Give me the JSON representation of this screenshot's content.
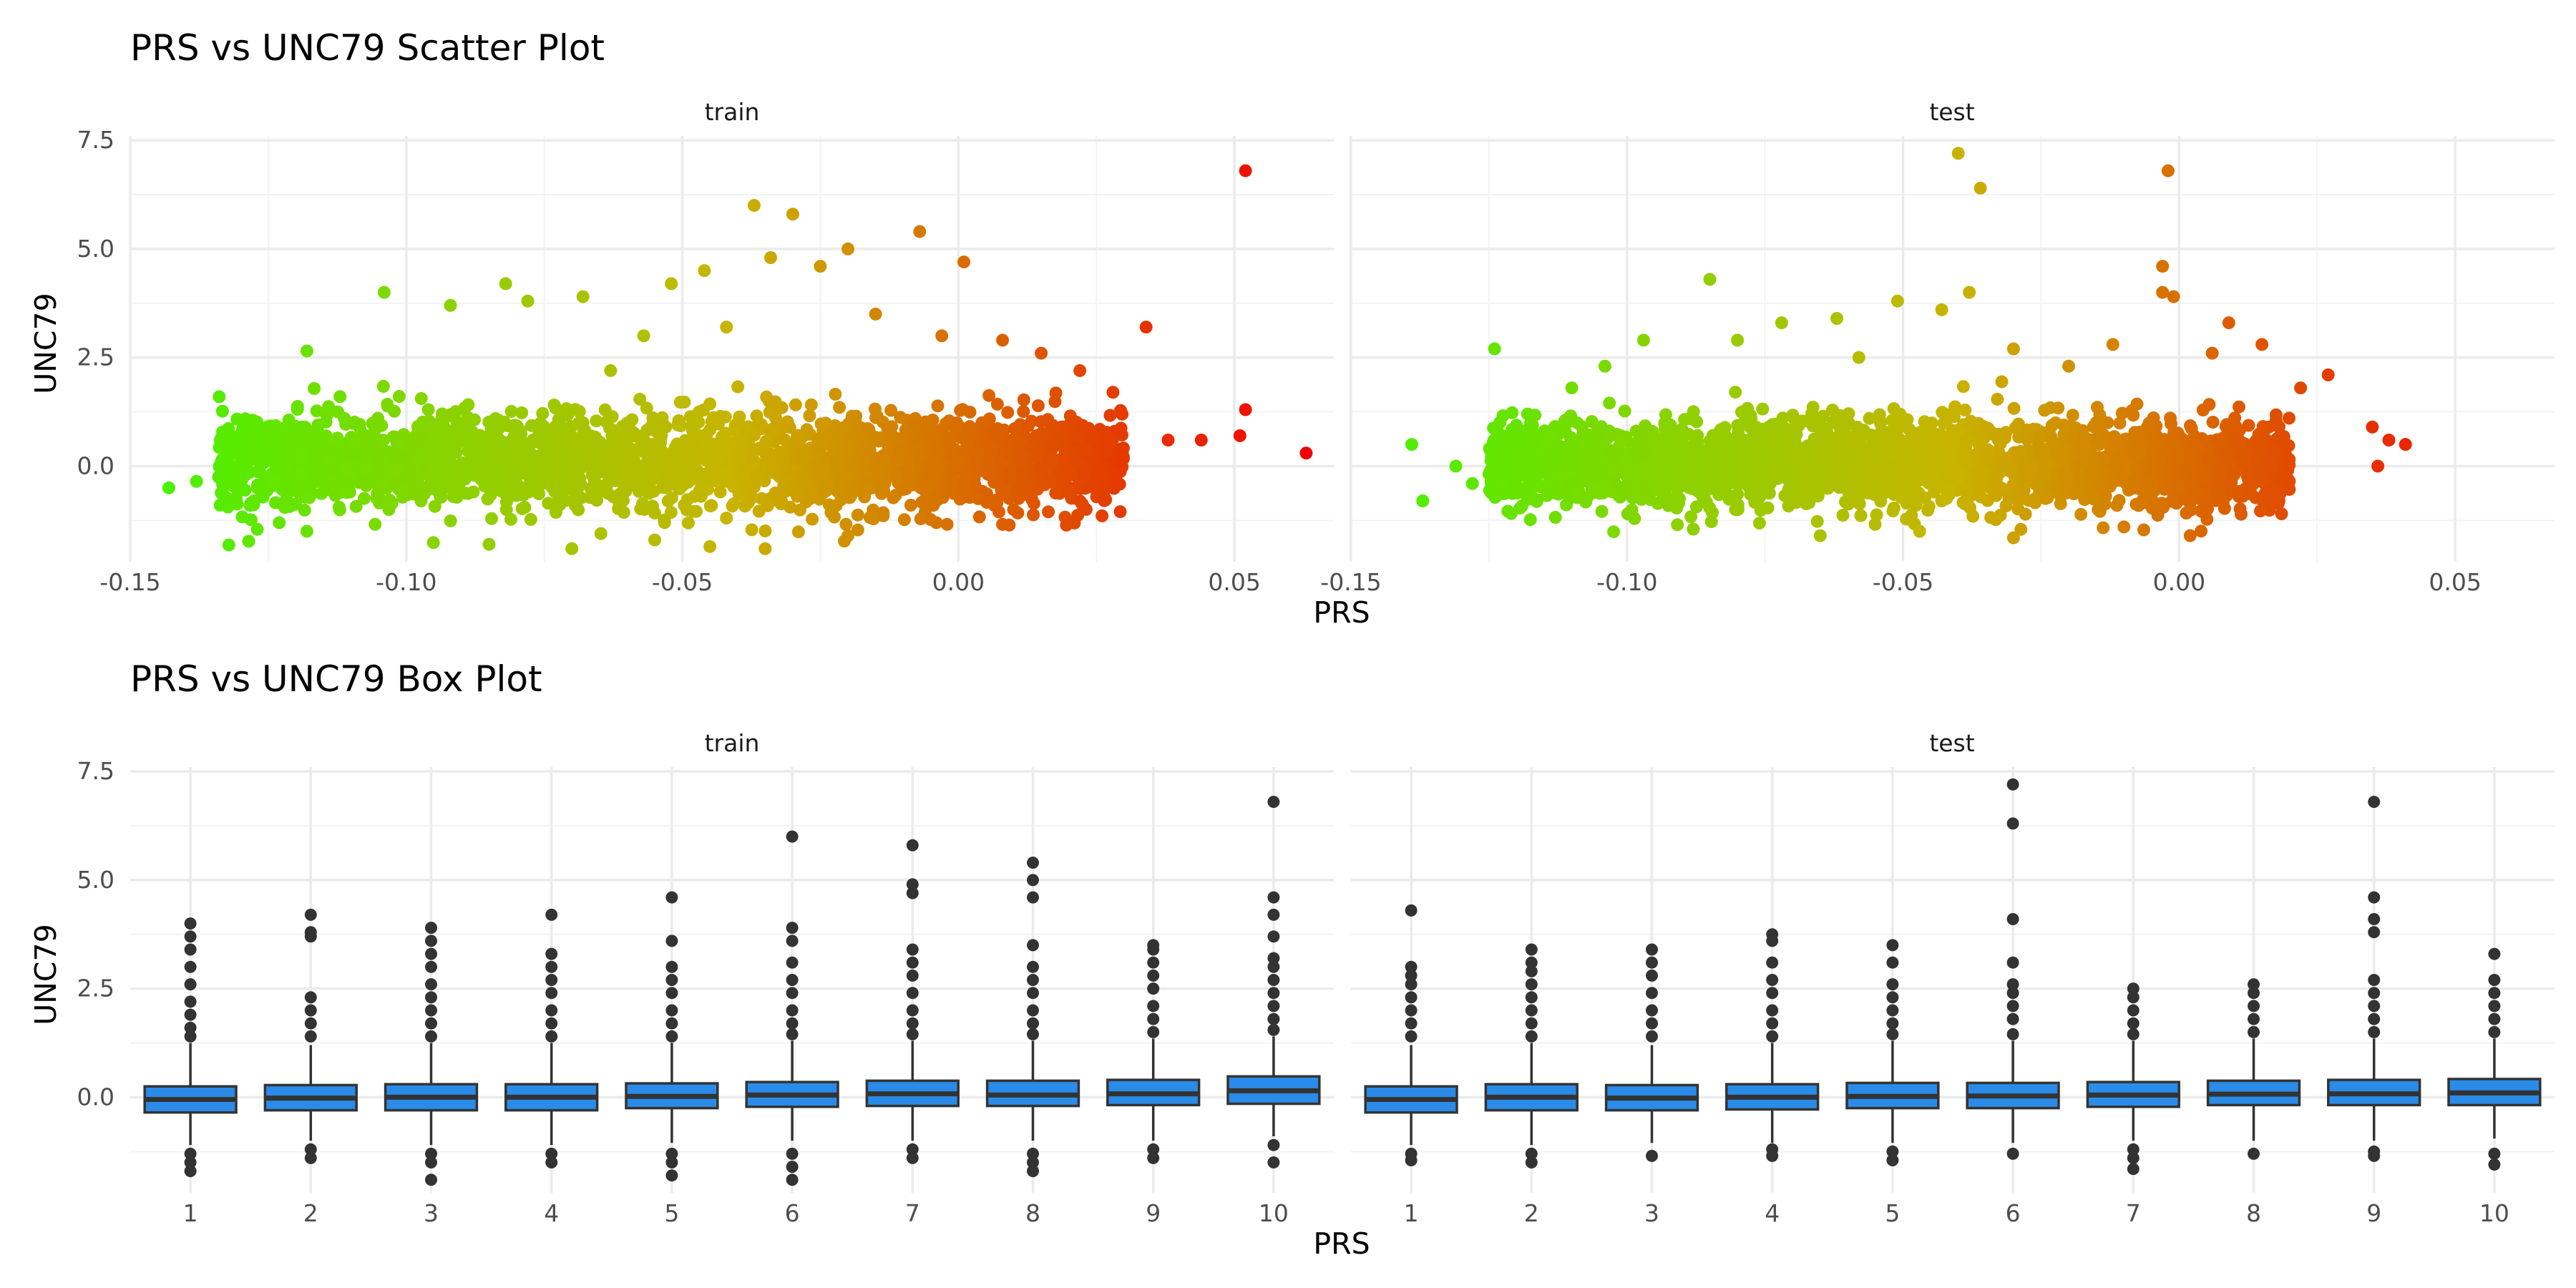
{
  "chart_data": [
    {
      "type": "scatter",
      "title": "PRS vs UNC79 Scatter Plot",
      "xlabel": "PRS",
      "ylabel": "UNC79",
      "xlim": [
        -0.15,
        0.068
      ],
      "ylim": [
        -2.2,
        7.6
      ],
      "x_ticks": [
        "-0.15",
        "-0.10",
        "-0.05",
        "0.00",
        "0.05"
      ],
      "y_ticks": [
        "0.0",
        "2.5",
        "5.0",
        "7.5"
      ],
      "color_scale": {
        "low": "#49f200",
        "mid": "#c8b400",
        "high": "#f20000",
        "by": "PRS"
      },
      "panels": [
        {
          "name": "train",
          "bulk": {
            "x_range": [
              -0.134,
              0.03
            ],
            "y_center": 0.1,
            "y_spread": 0.55
          },
          "outliers": [
            [
              -0.143,
              -0.5
            ],
            [
              -0.138,
              -0.35
            ],
            [
              -0.134,
              -0.25
            ],
            [
              -0.127,
              0.15
            ],
            [
              -0.123,
              -1.3
            ],
            [
              -0.118,
              2.65
            ],
            [
              -0.112,
              1.6
            ],
            [
              -0.104,
              4.0
            ],
            [
              -0.096,
              1.3
            ],
            [
              -0.092,
              3.7
            ],
            [
              -0.082,
              4.2
            ],
            [
              -0.078,
              3.8
            ],
            [
              -0.068,
              3.9
            ],
            [
              -0.063,
              2.2
            ],
            [
              -0.057,
              3.0
            ],
            [
              -0.052,
              4.2
            ],
            [
              -0.046,
              4.5
            ],
            [
              -0.042,
              3.2
            ],
            [
              -0.037,
              6.0
            ],
            [
              -0.034,
              4.8
            ],
            [
              -0.03,
              5.8
            ],
            [
              -0.025,
              4.6
            ],
            [
              -0.02,
              5.0
            ],
            [
              -0.015,
              3.5
            ],
            [
              -0.007,
              5.4
            ],
            [
              -0.003,
              3.0
            ],
            [
              0.001,
              4.7
            ],
            [
              0.008,
              2.9
            ],
            [
              0.015,
              2.6
            ],
            [
              0.022,
              2.2
            ],
            [
              0.028,
              1.7
            ],
            [
              0.034,
              3.2
            ],
            [
              0.038,
              0.6
            ],
            [
              0.044,
              0.6
            ],
            [
              0.051,
              0.7
            ],
            [
              0.052,
              6.8
            ],
            [
              0.052,
              1.3
            ],
            [
              0.063,
              0.3
            ],
            [
              -0.118,
              -1.5
            ],
            [
              -0.085,
              -1.8
            ],
            [
              -0.07,
              -1.9
            ],
            [
              -0.055,
              -1.7
            ],
            [
              -0.045,
              -1.85
            ],
            [
              -0.035,
              -1.9
            ],
            [
              -0.02,
              -1.6
            ],
            [
              -0.004,
              -1.3
            ],
            [
              0.01,
              -1.0
            ]
          ]
        },
        {
          "name": "test",
          "bulk": {
            "x_range": [
              -0.125,
              0.02
            ],
            "y_center": 0.05,
            "y_spread": 0.5
          },
          "outliers": [
            [
              -0.139,
              0.5
            ],
            [
              -0.137,
              -0.8
            ],
            [
              -0.131,
              0.0
            ],
            [
              -0.128,
              -0.4
            ],
            [
              -0.124,
              2.7
            ],
            [
              -0.118,
              1.2
            ],
            [
              -0.11,
              1.8
            ],
            [
              -0.104,
              2.3
            ],
            [
              -0.097,
              2.9
            ],
            [
              -0.085,
              4.3
            ],
            [
              -0.08,
              2.9
            ],
            [
              -0.072,
              3.3
            ],
            [
              -0.062,
              3.4
            ],
            [
              -0.058,
              2.5
            ],
            [
              -0.051,
              3.8
            ],
            [
              -0.043,
              3.6
            ],
            [
              -0.04,
              7.2
            ],
            [
              -0.036,
              6.4
            ],
            [
              -0.038,
              4.0
            ],
            [
              -0.03,
              2.7
            ],
            [
              -0.02,
              2.3
            ],
            [
              -0.012,
              2.8
            ],
            [
              -0.003,
              4.6
            ],
            [
              -0.002,
              6.8
            ],
            [
              -0.003,
              4.0
            ],
            [
              -0.001,
              3.9
            ],
            [
              0.006,
              2.6
            ],
            [
              0.009,
              3.3
            ],
            [
              0.015,
              2.8
            ],
            [
              0.022,
              1.8
            ],
            [
              0.027,
              2.1
            ],
            [
              0.035,
              0.9
            ],
            [
              0.038,
              0.6
            ],
            [
              0.041,
              0.5
            ],
            [
              0.036,
              0.0
            ],
            [
              -0.088,
              -1.45
            ],
            [
              -0.065,
              -1.6
            ],
            [
              -0.047,
              -1.5
            ],
            [
              -0.03,
              -1.65
            ],
            [
              -0.01,
              -1.4
            ],
            [
              0.002,
              -1.6
            ]
          ]
        }
      ]
    },
    {
      "type": "box",
      "title": "PRS vs UNC79 Box Plot",
      "xlabel": "PRS",
      "ylabel": "UNC79",
      "categories": [
        "1",
        "2",
        "3",
        "4",
        "5",
        "6",
        "7",
        "8",
        "9",
        "10"
      ],
      "ylim": [
        -2.2,
        7.6
      ],
      "y_ticks": [
        "0.0",
        "2.5",
        "5.0",
        "7.5"
      ],
      "fill": "#2a8be8",
      "panels": [
        {
          "name": "train",
          "boxes": [
            {
              "q1": -0.35,
              "median": -0.05,
              "q3": 0.25,
              "lo": -1.1,
              "hi": 1.25,
              "outliers_hi": [
                1.4,
                1.6,
                1.9,
                2.2,
                2.6,
                3.0,
                3.4,
                3.7,
                4.0
              ],
              "outliers_lo": [
                -1.3,
                -1.5,
                -1.7
              ]
            },
            {
              "q1": -0.3,
              "median": -0.02,
              "q3": 0.28,
              "lo": -1.0,
              "hi": 1.2,
              "outliers_hi": [
                1.4,
                1.7,
                2.0,
                2.3,
                3.7,
                3.8,
                4.2
              ],
              "outliers_lo": [
                -1.2,
                -1.4
              ]
            },
            {
              "q1": -0.3,
              "median": 0.0,
              "q3": 0.3,
              "lo": -1.1,
              "hi": 1.25,
              "outliers_hi": [
                1.4,
                1.7,
                2.0,
                2.3,
                2.6,
                3.0,
                3.3,
                3.6,
                3.9
              ],
              "outliers_lo": [
                -1.3,
                -1.5,
                -1.9
              ]
            },
            {
              "q1": -0.3,
              "median": 0.0,
              "q3": 0.3,
              "lo": -1.1,
              "hi": 1.25,
              "outliers_hi": [
                1.4,
                1.7,
                2.0,
                2.4,
                2.7,
                3.0,
                3.3,
                4.2
              ],
              "outliers_lo": [
                -1.3,
                -1.5
              ]
            },
            {
              "q1": -0.25,
              "median": 0.02,
              "q3": 0.32,
              "lo": -1.05,
              "hi": 1.25,
              "outliers_hi": [
                1.4,
                1.7,
                2.0,
                2.4,
                2.7,
                3.0,
                3.6,
                4.6
              ],
              "outliers_lo": [
                -1.3,
                -1.5,
                -1.8
              ]
            },
            {
              "q1": -0.22,
              "median": 0.05,
              "q3": 0.35,
              "lo": -1.0,
              "hi": 1.3,
              "outliers_hi": [
                1.45,
                1.7,
                2.0,
                2.4,
                2.7,
                3.1,
                3.6,
                3.9,
                6.0
              ],
              "outliers_lo": [
                -1.3,
                -1.6,
                -1.9
              ]
            },
            {
              "q1": -0.2,
              "median": 0.08,
              "q3": 0.38,
              "lo": -1.0,
              "hi": 1.3,
              "outliers_hi": [
                1.45,
                1.7,
                2.0,
                2.4,
                2.8,
                3.1,
                3.4,
                4.7,
                4.9,
                5.8
              ],
              "outliers_lo": [
                -1.2,
                -1.4
              ]
            },
            {
              "q1": -0.2,
              "median": 0.05,
              "q3": 0.38,
              "lo": -1.0,
              "hi": 1.3,
              "outliers_hi": [
                1.45,
                1.7,
                2.0,
                2.4,
                2.7,
                3.0,
                3.5,
                4.6,
                5.0,
                5.4
              ],
              "outliers_lo": [
                -1.3,
                -1.5,
                -1.7
              ]
            },
            {
              "q1": -0.18,
              "median": 0.08,
              "q3": 0.4,
              "lo": -1.0,
              "hi": 1.35,
              "outliers_hi": [
                1.5,
                1.8,
                2.1,
                2.5,
                2.8,
                3.1,
                3.4,
                3.5
              ],
              "outliers_lo": [
                -1.2,
                -1.4
              ]
            },
            {
              "q1": -0.15,
              "median": 0.15,
              "q3": 0.48,
              "lo": -0.9,
              "hi": 1.4,
              "outliers_hi": [
                1.55,
                1.8,
                2.1,
                2.4,
                2.7,
                3.0,
                3.2,
                3.7,
                4.2,
                4.6,
                6.8
              ],
              "outliers_lo": [
                -1.1,
                -1.5
              ]
            }
          ]
        },
        {
          "name": "test",
          "boxes": [
            {
              "q1": -0.35,
              "median": -0.05,
              "q3": 0.25,
              "lo": -1.1,
              "hi": 1.2,
              "outliers_hi": [
                1.4,
                1.7,
                2.0,
                2.3,
                2.6,
                2.8,
                3.0,
                4.3
              ],
              "outliers_lo": [
                -1.3,
                -1.45
              ]
            },
            {
              "q1": -0.3,
              "median": 0.0,
              "q3": 0.3,
              "lo": -1.1,
              "hi": 1.25,
              "outliers_hi": [
                1.4,
                1.7,
                2.0,
                2.3,
                2.6,
                2.9,
                3.1,
                3.4
              ],
              "outliers_lo": [
                -1.3,
                -1.5
              ]
            },
            {
              "q1": -0.3,
              "median": -0.02,
              "q3": 0.28,
              "lo": -1.05,
              "hi": 1.2,
              "outliers_hi": [
                1.4,
                1.7,
                2.0,
                2.4,
                2.8,
                3.1,
                3.4
              ],
              "outliers_lo": [
                -1.35
              ]
            },
            {
              "q1": -0.28,
              "median": 0.0,
              "q3": 0.3,
              "lo": -1.05,
              "hi": 1.25,
              "outliers_hi": [
                1.4,
                1.7,
                2.0,
                2.4,
                2.7,
                3.1,
                3.6,
                3.75
              ],
              "outliers_lo": [
                -1.2,
                -1.35
              ]
            },
            {
              "q1": -0.25,
              "median": 0.02,
              "q3": 0.33,
              "lo": -1.05,
              "hi": 1.3,
              "outliers_hi": [
                1.45,
                1.7,
                2.0,
                2.3,
                2.6,
                3.1,
                3.5
              ],
              "outliers_lo": [
                -1.25,
                -1.45
              ]
            },
            {
              "q1": -0.25,
              "median": 0.03,
              "q3": 0.33,
              "lo": -1.05,
              "hi": 1.3,
              "outliers_hi": [
                1.45,
                1.8,
                2.1,
                2.4,
                2.6,
                3.1,
                4.1,
                6.3,
                7.2
              ],
              "outliers_lo": [
                -1.3
              ]
            },
            {
              "q1": -0.22,
              "median": 0.05,
              "q3": 0.35,
              "lo": -1.0,
              "hi": 1.3,
              "outliers_hi": [
                1.45,
                1.7,
                2.0,
                2.3,
                2.5
              ],
              "outliers_lo": [
                -1.2,
                -1.4,
                -1.65
              ]
            },
            {
              "q1": -0.18,
              "median": 0.07,
              "q3": 0.38,
              "lo": -1.0,
              "hi": 1.35,
              "outliers_hi": [
                1.5,
                1.8,
                2.1,
                2.4,
                2.6
              ],
              "outliers_lo": [
                -1.3
              ]
            },
            {
              "q1": -0.18,
              "median": 0.08,
              "q3": 0.4,
              "lo": -1.0,
              "hi": 1.35,
              "outliers_hi": [
                1.5,
                1.8,
                2.1,
                2.4,
                2.7,
                3.8,
                4.1,
                4.6,
                6.8
              ],
              "outliers_lo": [
                -1.25,
                -1.35
              ]
            },
            {
              "q1": -0.18,
              "median": 0.1,
              "q3": 0.42,
              "lo": -0.95,
              "hi": 1.35,
              "outliers_hi": [
                1.5,
                1.8,
                2.1,
                2.4,
                2.7,
                3.3
              ],
              "outliers_lo": [
                -1.3,
                -1.55
              ]
            }
          ]
        }
      ]
    }
  ]
}
